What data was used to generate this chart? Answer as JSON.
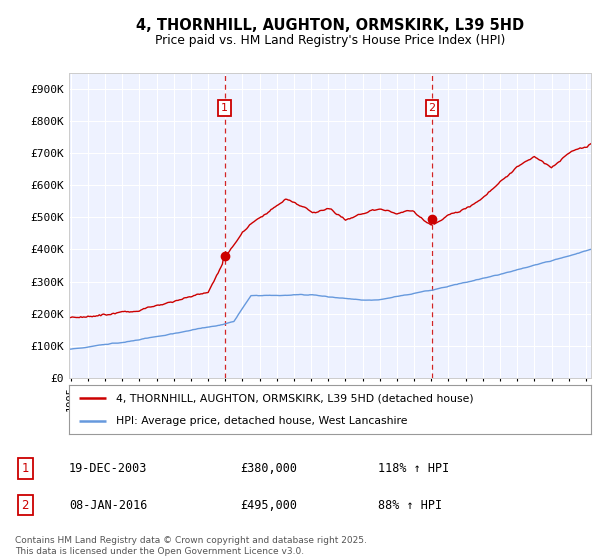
{
  "title_line1": "4, THORNHILL, AUGHTON, ORMSKIRK, L39 5HD",
  "title_line2": "Price paid vs. HM Land Registry's House Price Index (HPI)",
  "background_color": "#f8f8f8",
  "plot_bg_color": "#f0f4ff",
  "red_color": "#cc0000",
  "blue_color": "#6699dd",
  "purchase1_year": 2003,
  "purchase1_month": 12,
  "purchase1_price": 380000,
  "purchase2_year": 2016,
  "purchase2_month": 1,
  "purchase2_price": 495000,
  "legend_label_red": "4, THORNHILL, AUGHTON, ORMSKIRK, L39 5HD (detached house)",
  "legend_label_blue": "HPI: Average price, detached house, West Lancashire",
  "table_row1": [
    "1",
    "19-DEC-2003",
    "£380,000",
    "118% ↑ HPI"
  ],
  "table_row2": [
    "2",
    "08-JAN-2016",
    "£495,000",
    "88% ↑ HPI"
  ],
  "footnote_line1": "Contains HM Land Registry data © Crown copyright and database right 2025.",
  "footnote_line2": "This data is licensed under the Open Government Licence v3.0.",
  "ylim": [
    0,
    950000
  ],
  "yticks": [
    0,
    100000,
    200000,
    300000,
    400000,
    500000,
    600000,
    700000,
    800000,
    900000
  ],
  "ytick_labels": [
    "£0",
    "£100K",
    "£200K",
    "£300K",
    "£400K",
    "£500K",
    "£600K",
    "£700K",
    "£800K",
    "£900K"
  ],
  "x_start_year": 1995,
  "x_end_year": 2025
}
